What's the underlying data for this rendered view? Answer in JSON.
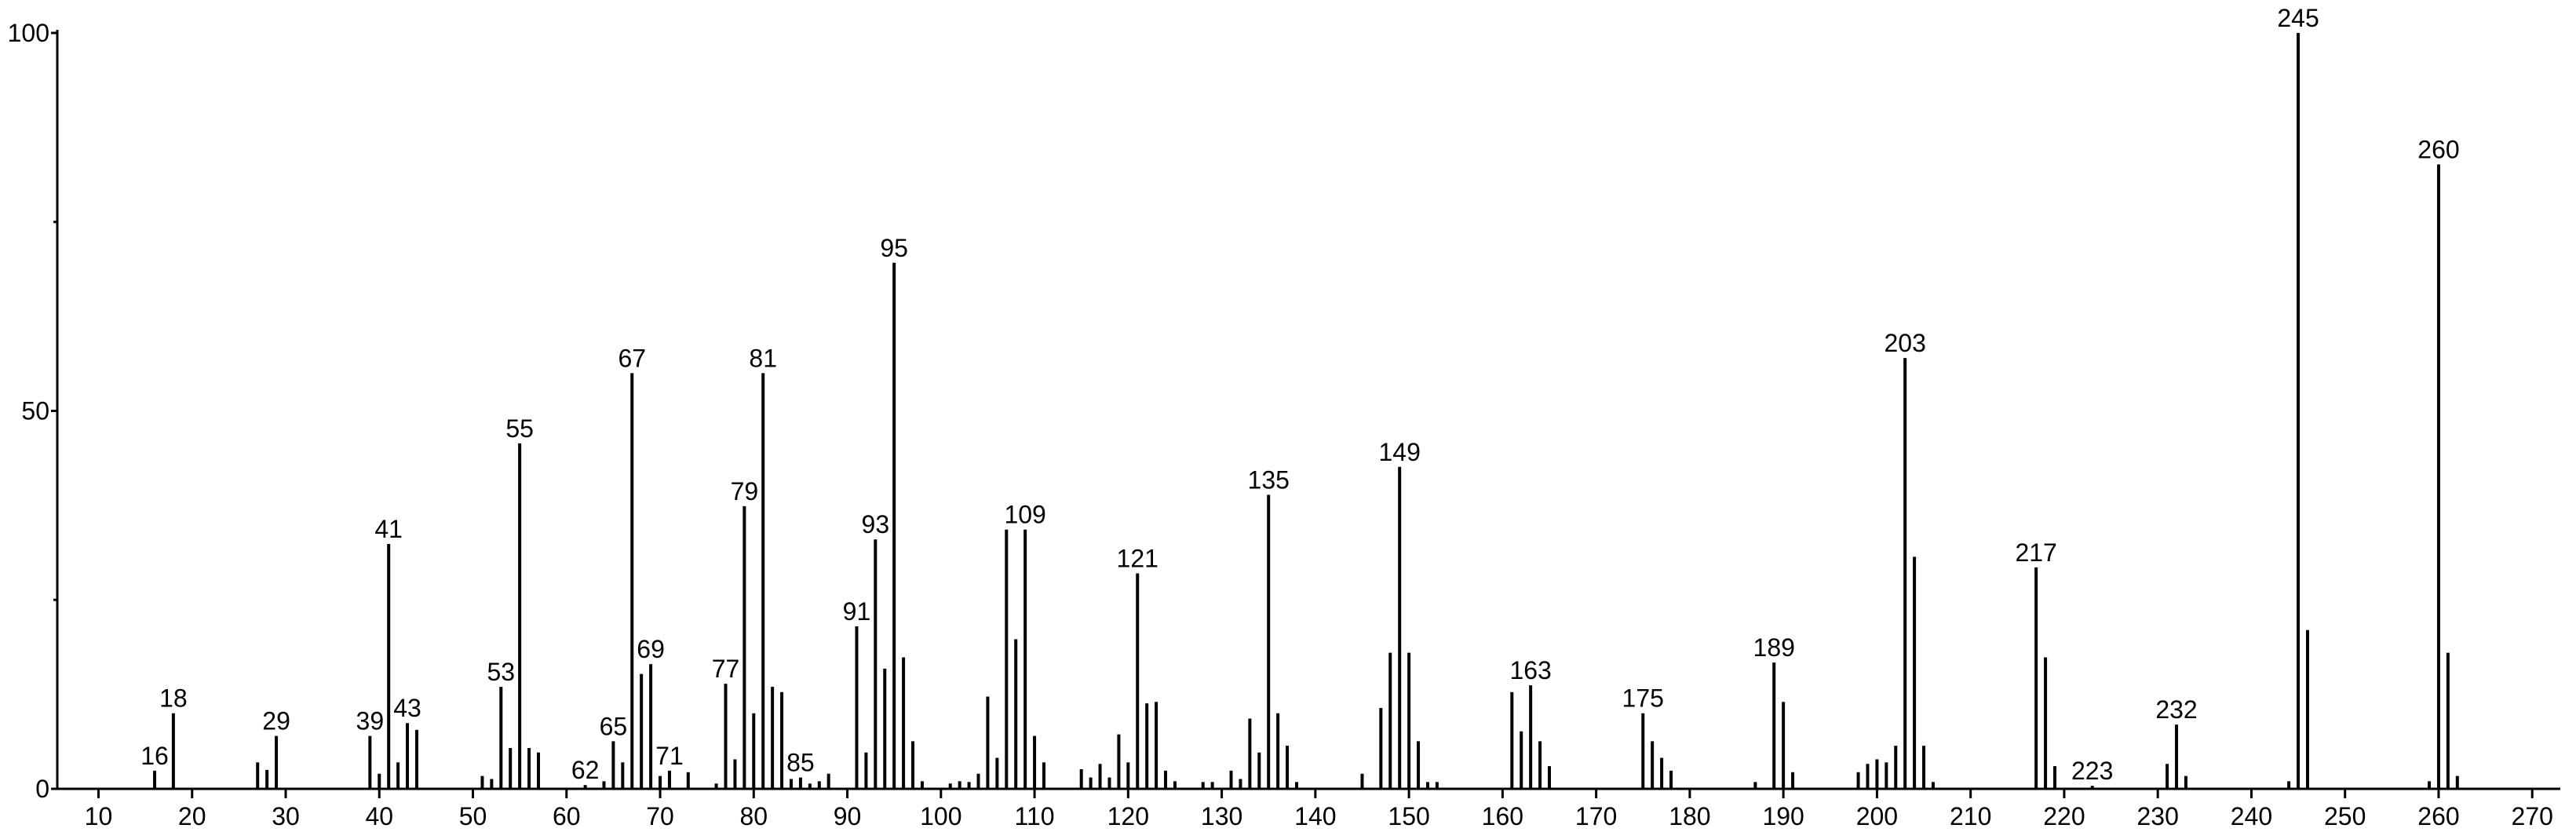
{
  "chart_data": {
    "type": "stem",
    "color": "#000000",
    "x": [
      16,
      18,
      27,
      28,
      29,
      39,
      40,
      41,
      42,
      43,
      44,
      51,
      52,
      53,
      54,
      55,
      56,
      57,
      62,
      64,
      65,
      66,
      67,
      68,
      69,
      70,
      71,
      73,
      76,
      77,
      78,
      79,
      80,
      81,
      82,
      83,
      84,
      85,
      86,
      87,
      88,
      91,
      92,
      93,
      94,
      95,
      96,
      97,
      98,
      101,
      102,
      103,
      104,
      105,
      106,
      107,
      108,
      109,
      110,
      111,
      115,
      116,
      117,
      118,
      119,
      120,
      121,
      122,
      123,
      124,
      125,
      128,
      129,
      131,
      132,
      133,
      134,
      135,
      136,
      137,
      138,
      145,
      147,
      148,
      149,
      150,
      151,
      152,
      153,
      161,
      162,
      163,
      164,
      165,
      175,
      176,
      177,
      178,
      187,
      189,
      190,
      191,
      198,
      199,
      200,
      201,
      202,
      203,
      204,
      205,
      206,
      217,
      218,
      219,
      223,
      231,
      232,
      233,
      244,
      245,
      246,
      259,
      260,
      261,
      262
    ],
    "values": [
      2.4,
      10,
      3.5,
      2.5,
      7,
      7,
      2,
      32.4,
      3.5,
      8.7,
      7.8,
      1.7,
      1.3,
      13.5,
      5.4,
      45.7,
      5.4,
      4.8,
      0.5,
      1,
      6.3,
      3.5,
      55,
      15.2,
      16.5,
      1.7,
      2.4,
      2.2,
      0.7,
      13.9,
      3.9,
      37.4,
      10,
      55,
      13.5,
      12.8,
      1.3,
      1.5,
      0.7,
      1,
      2,
      21.5,
      4.8,
      33,
      15.9,
      69.6,
      17.4,
      6.3,
      1,
      0.7,
      1,
      0.9,
      2,
      12.2,
      4.1,
      34.3,
      19.8,
      34.3,
      7,
      3.5,
      2.6,
      1.5,
      3.3,
      1.5,
      7.2,
      3.5,
      28.5,
      11.3,
      11.5,
      2.4,
      1,
      0.9,
      0.9,
      2.4,
      1.3,
      9.3,
      4.8,
      38.9,
      10,
      5.7,
      0.9,
      2,
      10.7,
      18,
      42.6,
      18,
      6.3,
      0.9,
      0.9,
      12.8,
      7.6,
      13.7,
      6.3,
      3,
      10,
      6.3,
      4.1,
      2.4,
      0.9,
      16.7,
      11.5,
      2.2,
      2.2,
      3.3,
      3.9,
      3.5,
      5.7,
      57,
      30.7,
      5.7,
      0.9,
      29.3,
      17.4,
      3,
      0.4,
      3.3,
      8.5,
      1.7,
      1,
      100,
      21,
      1,
      82.6,
      18,
      1.7
    ],
    "annotations": [
      16,
      18,
      29,
      39,
      41,
      43,
      53,
      55,
      62,
      65,
      67,
      69,
      71,
      77,
      79,
      81,
      85,
      91,
      93,
      95,
      109,
      121,
      135,
      149,
      163,
      175,
      189,
      203,
      217,
      223,
      232,
      245,
      260
    ],
    "xlim": [
      5.6,
      273
    ],
    "ylim": [
      0,
      100
    ],
    "xticks": [
      10,
      20,
      30,
      40,
      50,
      60,
      70,
      80,
      90,
      100,
      110,
      120,
      130,
      140,
      150,
      160,
      170,
      180,
      190,
      200,
      210,
      220,
      230,
      240,
      250,
      260,
      270
    ],
    "yticks": [
      0,
      50,
      100
    ],
    "y_minor_ticks": [
      25,
      75
    ]
  }
}
